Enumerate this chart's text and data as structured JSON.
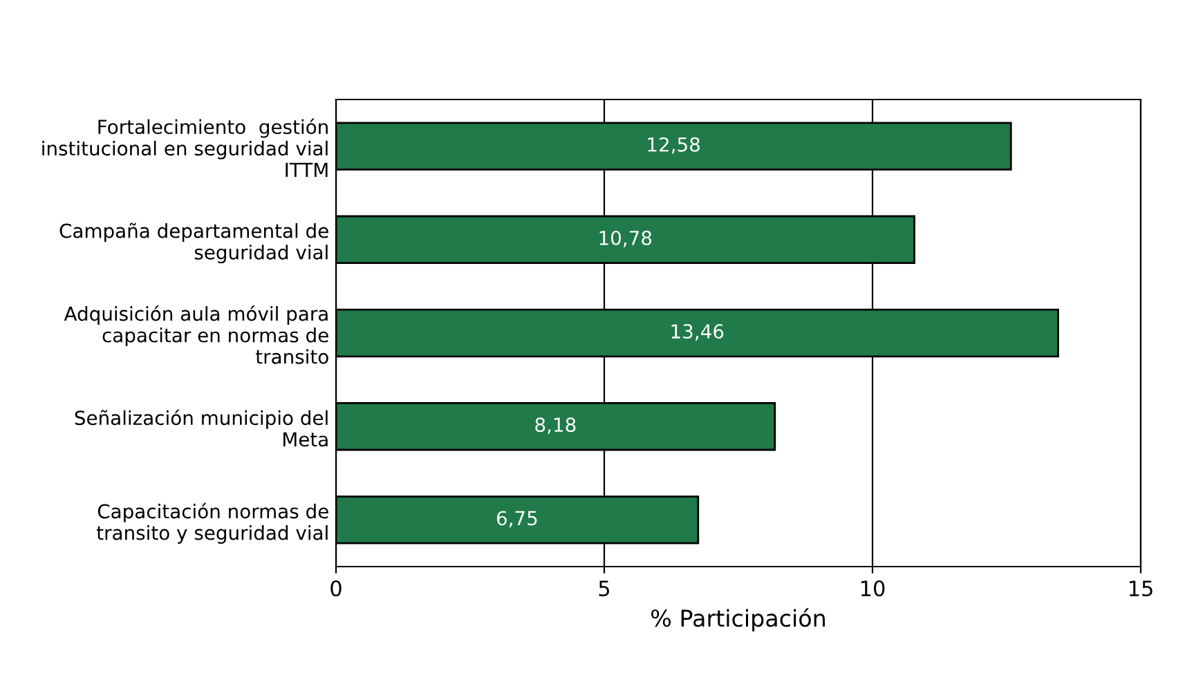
{
  "chart_data": {
    "type": "bar",
    "orientation": "horizontal",
    "xlabel": "% Participación",
    "categories": [
      "Fortalecimiento  gestión\ninstitucional en seguridad vial\nITTM",
      "Campaña departamental de\nseguridad vial",
      "Adquisición aula móvil para\ncapacitar en normas de\ntransito",
      "Señalización municipio del\nMeta",
      "Capacitación normas de\ntransito y seguridad vial"
    ],
    "values": [
      12.58,
      10.78,
      13.46,
      8.18,
      6.75
    ],
    "value_labels": [
      "12,58",
      "10,78",
      "13,46",
      "8,18",
      "6,75"
    ],
    "color": "#217a4a",
    "xlim": [
      0,
      15
    ],
    "xticks": [
      0,
      5,
      10,
      15
    ],
    "grid": "x",
    "legend": false
  }
}
